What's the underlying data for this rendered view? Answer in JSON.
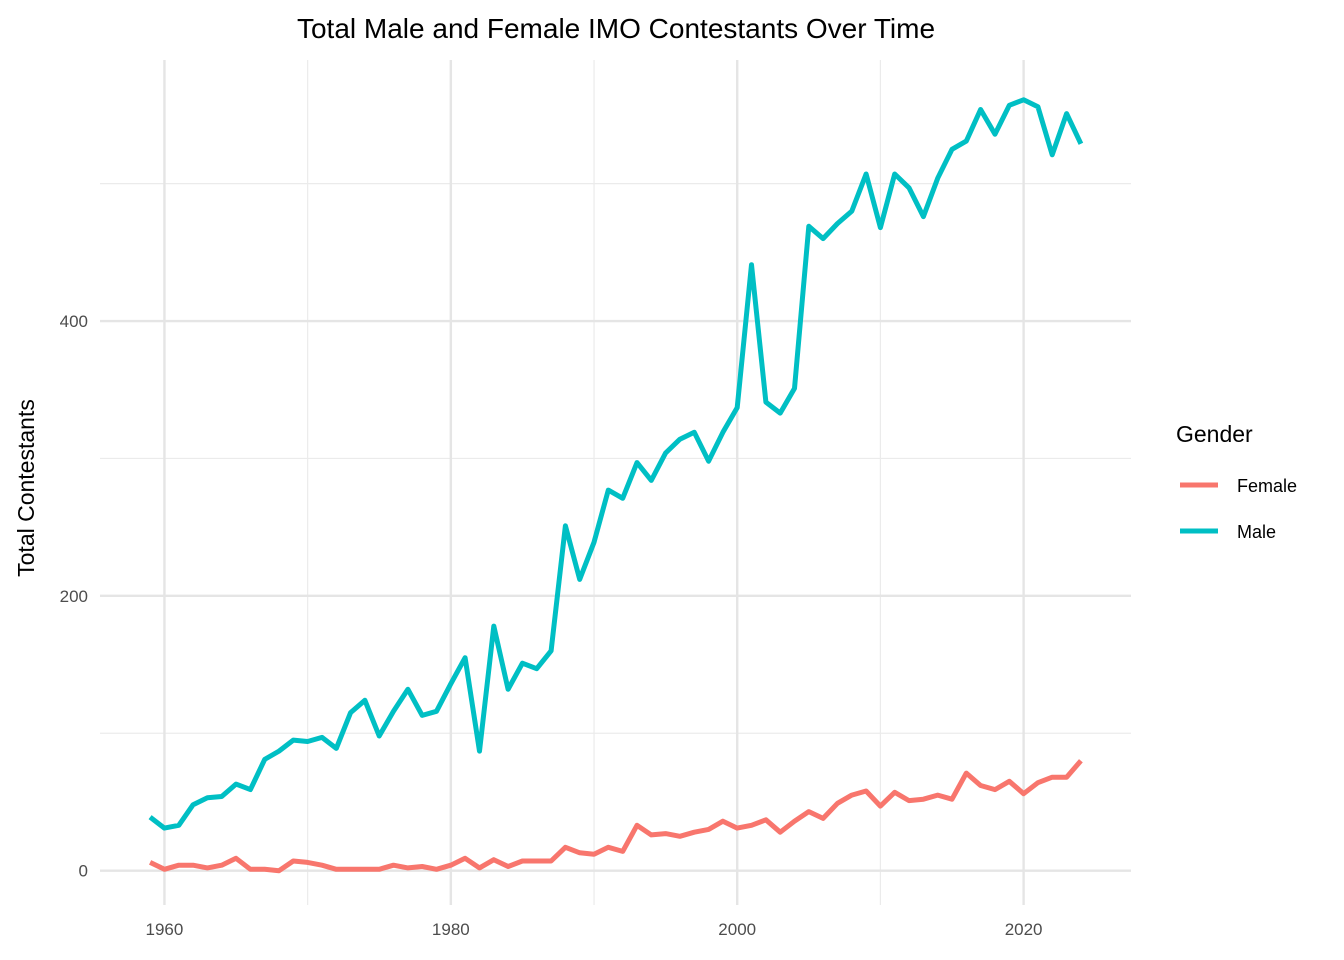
{
  "chart_data": {
    "type": "line",
    "title": "Total Male and Female IMO Contestants Over Time",
    "xlabel": "",
    "ylabel": "Total Contestants",
    "xlim": [
      1955.5,
      2027.5
    ],
    "ylim": [
      -25,
      590
    ],
    "x_ticks": [
      1960,
      1980,
      2000,
      2020
    ],
    "x_minor": [
      1970,
      1990,
      2010
    ],
    "y_ticks": [
      0,
      200,
      400
    ],
    "y_minor": [
      100,
      300,
      500
    ],
    "grid": true,
    "legend": {
      "title": "Gender",
      "placement": "right"
    },
    "x": [
      1959,
      1960,
      1961,
      1962,
      1963,
      1964,
      1965,
      1966,
      1967,
      1968,
      1969,
      1970,
      1971,
      1972,
      1973,
      1974,
      1975,
      1976,
      1977,
      1978,
      1979,
      1980,
      1981,
      1982,
      1983,
      1984,
      1985,
      1986,
      1987,
      1988,
      1989,
      1990,
      1991,
      1992,
      1993,
      1994,
      1995,
      1996,
      1997,
      1998,
      1999,
      2000,
      2001,
      2002,
      2003,
      2004,
      2005,
      2006,
      2007,
      2008,
      2009,
      2010,
      2011,
      2012,
      2013,
      2014,
      2015,
      2016,
      2017,
      2018,
      2019,
      2020,
      2021,
      2022,
      2023,
      2024
    ],
    "series": [
      {
        "name": "Female",
        "color": "#F8766D",
        "values": [
          6,
          1,
          4,
          4,
          2,
          4,
          9,
          1,
          1,
          0,
          7,
          6,
          4,
          1,
          1,
          1,
          1,
          4,
          2,
          3,
          1,
          4,
          9,
          2,
          8,
          3,
          7,
          7,
          7,
          17,
          13,
          12,
          17,
          14,
          33,
          26,
          27,
          25,
          28,
          30,
          36,
          31,
          33,
          37,
          28,
          36,
          43,
          38,
          49,
          55,
          58,
          47,
          57,
          51,
          52,
          55,
          52,
          71,
          62,
          59,
          65,
          56,
          64,
          68,
          68,
          80
        ]
      },
      {
        "name": "Male",
        "color": "#00BFC4",
        "values": [
          39,
          31,
          33,
          48,
          53,
          54,
          63,
          59,
          81,
          87,
          95,
          94,
          97,
          89,
          115,
          124,
          98,
          116,
          132,
          113,
          116,
          136,
          155,
          87,
          178,
          132,
          151,
          147,
          160,
          251,
          212,
          239,
          277,
          271,
          297,
          284,
          304,
          314,
          319,
          298,
          319,
          337,
          441,
          341,
          333,
          351,
          469,
          460,
          471,
          480,
          507,
          468,
          507,
          497,
          476,
          504,
          525,
          531,
          554,
          536,
          557,
          561,
          556,
          521,
          551,
          529
        ]
      }
    ]
  }
}
